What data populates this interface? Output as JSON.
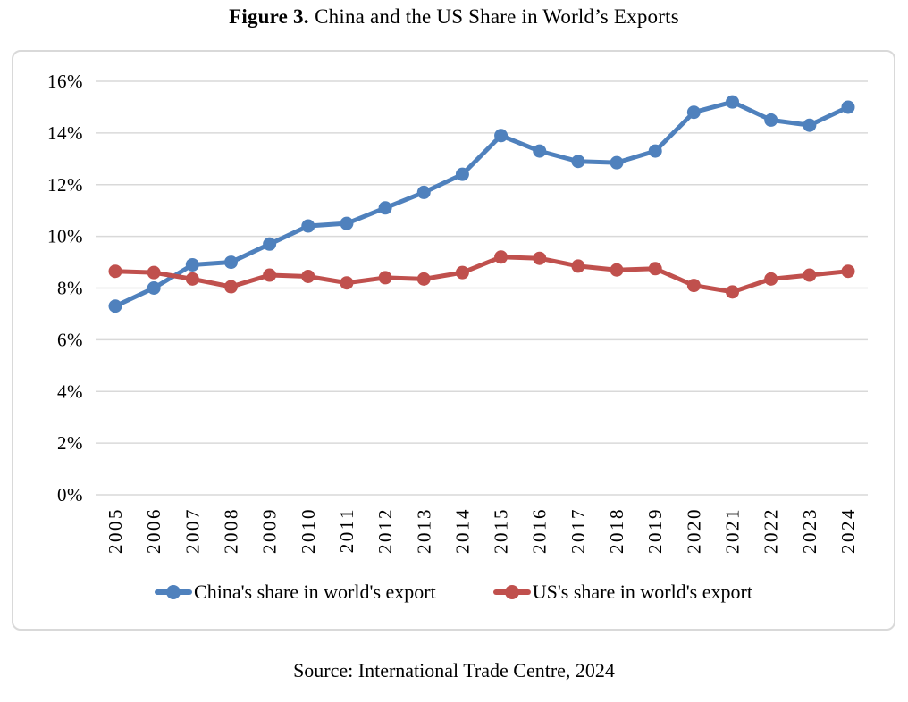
{
  "title": {
    "figure_label": "Figure 3.",
    "text": "China and the US Share in World’s Exports"
  },
  "source_note": "Source: International Trade Centre, 2024",
  "legend": {
    "items": [
      {
        "label": "China's share in world's export",
        "color": "#4F81BD"
      },
      {
        "label": "US's share in world's export",
        "color": "#C0504D"
      }
    ]
  },
  "chart_data": {
    "type": "line",
    "title": "Figure 3. China and the US Share in World’s Exports",
    "categories": [
      "2005",
      "2006",
      "2007",
      "2008",
      "2009",
      "2010",
      "2011",
      "2012",
      "2013",
      "2014",
      "2015",
      "2016",
      "2017",
      "2018",
      "2019",
      "2020",
      "2021",
      "2022",
      "2023",
      "2024"
    ],
    "series": [
      {
        "name": "China's share in world's export",
        "color": "#4F81BD",
        "values": [
          7.3,
          8.0,
          8.9,
          9.0,
          9.7,
          10.4,
          10.5,
          11.1,
          11.7,
          12.4,
          13.9,
          13.3,
          12.9,
          12.85,
          13.3,
          14.8,
          15.2,
          14.5,
          14.3,
          15.0
        ]
      },
      {
        "name": "US's share in world's export",
        "color": "#C0504D",
        "values": [
          8.65,
          8.6,
          8.35,
          8.05,
          8.5,
          8.45,
          8.2,
          8.4,
          8.35,
          8.6,
          9.2,
          9.15,
          8.85,
          8.7,
          8.75,
          8.1,
          7.85,
          8.35,
          8.5,
          8.65
        ]
      }
    ],
    "xlabel": "",
    "ylabel": "",
    "ylim": [
      0,
      16
    ],
    "y_tick_step": 2,
    "y_ticks": [
      "0%",
      "2%",
      "4%",
      "6%",
      "8%",
      "10%",
      "12%",
      "14%",
      "16%"
    ],
    "x_tick_rotation": -90,
    "grid": true,
    "gridline_color": "#D9D9D9",
    "legend_position": "bottom"
  }
}
